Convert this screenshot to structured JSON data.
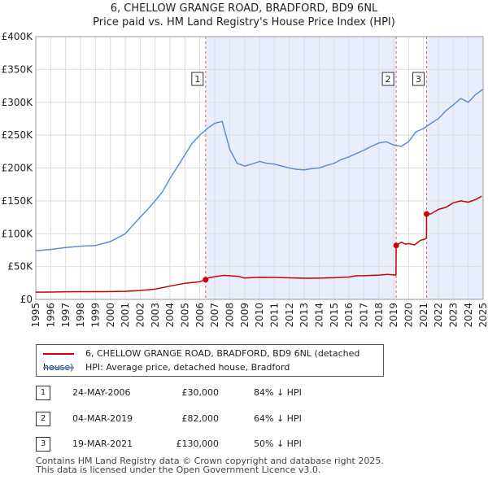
{
  "title_line1": "6, CHELLOW GRANGE ROAD, BRADFORD, BD9 6NL",
  "title_line2": "Price paid vs. HM Land Registry's House Price Index (HPI)",
  "colors": {
    "property": "#cc0000",
    "hpi": "#5b8fd6",
    "shade": "#e8eefb",
    "marker_line": "#e06666",
    "grid": "#dddddd"
  },
  "chart_data": {
    "type": "line",
    "title": "6, CHELLOW GRANGE ROAD, BRADFORD, BD9 6NL — Price paid vs. HM Land Registry's House Price Index (HPI)",
    "xlim": [
      1995,
      2025
    ],
    "ylim": [
      0,
      400000
    ],
    "x_ticks": [
      1995,
      1996,
      1997,
      1998,
      1999,
      2000,
      2001,
      2002,
      2003,
      2004,
      2005,
      2006,
      2007,
      2008,
      2009,
      2010,
      2011,
      2012,
      2013,
      2014,
      2015,
      2016,
      2017,
      2018,
      2019,
      2020,
      2021,
      2022,
      2023,
      2024,
      2025
    ],
    "y_ticks": [
      {
        "value": 0,
        "label": "£0"
      },
      {
        "value": 50000,
        "label": "£50K"
      },
      {
        "value": 100000,
        "label": "£100K"
      },
      {
        "value": 150000,
        "label": "£150K"
      },
      {
        "value": 200000,
        "label": "£200K"
      },
      {
        "value": 250000,
        "label": "£250K"
      },
      {
        "value": 300000,
        "label": "£300K"
      },
      {
        "value": 350000,
        "label": "£350K"
      },
      {
        "value": 400000,
        "label": "£400K"
      }
    ],
    "shaded_periods": [
      [
        2006.39,
        2019.17
      ],
      [
        2021.21,
        2025.0
      ]
    ],
    "series": [
      {
        "name": "6, CHELLOW GRANGE ROAD, BRADFORD, BD9 6NL (detached house)",
        "color": "#cc0000",
        "x": [
          1995.0,
          1996.0,
          1997.0,
          1998.0,
          1999.0,
          2000.0,
          2001.0,
          2002.0,
          2003.0,
          2004.0,
          2005.0,
          2005.5,
          2006.0,
          2006.39,
          2006.6,
          2007.0,
          2007.6,
          2008.0,
          2008.6,
          2009.0,
          2009.5,
          2010.0,
          2011.0,
          2012.0,
          2013.0,
          2014.0,
          2015.0,
          2016.0,
          2016.5,
          2017.0,
          2018.0,
          2018.6,
          2019.16,
          2019.17,
          2019.5,
          2019.8,
          2020.0,
          2020.4,
          2020.8,
          2021.0,
          2021.2,
          2021.21,
          2021.5,
          2022.0,
          2022.5,
          2023.0,
          2023.5,
          2024.0,
          2024.5,
          2024.9
        ],
        "y": [
          11000,
          11200,
          11600,
          11800,
          11800,
          11900,
          12300,
          13500,
          15600,
          20200,
          24500,
          25800,
          27000,
          30000,
          33000,
          34500,
          36500,
          36000,
          35000,
          32500,
          33200,
          33500,
          33400,
          32800,
          32200,
          32300,
          32900,
          34000,
          36000,
          36000,
          37000,
          38000,
          37000,
          82000,
          87000,
          84000,
          85000,
          83000,
          90000,
          91000,
          93000,
          130000,
          130000,
          137000,
          140000,
          147000,
          150000,
          148000,
          152000,
          157000
        ]
      },
      {
        "name": "HPI: Average price, detached house, Bradford",
        "color": "#5b8fd6",
        "x": [
          1995.0,
          1996.0,
          1997.0,
          1998.0,
          1999.0,
          2000.0,
          2001.0,
          2002.0,
          2002.5,
          2003.0,
          2003.5,
          2004.0,
          2004.5,
          2005.0,
          2005.5,
          2006.0,
          2006.5,
          2007.0,
          2007.5,
          2008.0,
          2008.5,
          2009.0,
          2009.5,
          2010.0,
          2010.5,
          2011.0,
          2011.5,
          2012.0,
          2012.5,
          2013.0,
          2013.5,
          2014.0,
          2014.5,
          2015.0,
          2015.5,
          2016.0,
          2016.5,
          2017.0,
          2017.5,
          2018.0,
          2018.5,
          2019.0,
          2019.5,
          2020.0,
          2020.5,
          2021.0,
          2021.5,
          2022.0,
          2022.5,
          2023.0,
          2023.5,
          2024.0,
          2024.5,
          2025.0
        ],
        "y": [
          74000,
          76000,
          79000,
          81000,
          82000,
          88000,
          100000,
          125000,
          137000,
          150000,
          164000,
          184000,
          202000,
          220000,
          238000,
          250000,
          260000,
          268000,
          271000,
          229000,
          207000,
          203000,
          206000,
          210000,
          207000,
          206000,
          203000,
          200000,
          198000,
          197000,
          199000,
          200000,
          204000,
          207000,
          213000,
          217000,
          222000,
          227000,
          233000,
          238000,
          240000,
          235000,
          233000,
          240000,
          255000,
          260000,
          268000,
          275000,
          287000,
          296000,
          306000,
          300000,
          312000,
          320000
        ]
      }
    ],
    "annotations": [
      {
        "label": "1",
        "x": 2006.39,
        "y": 30000
      },
      {
        "label": "2",
        "x": 2019.17,
        "y": 82000
      },
      {
        "label": "3",
        "x": 2021.21,
        "y": 130000
      }
    ]
  },
  "legend": {
    "property_label": "6, CHELLOW GRANGE ROAD, BRADFORD, BD9 6NL (detached house)",
    "hpi_label": "HPI: Average price, detached house, Bradford"
  },
  "sales": [
    {
      "num": "1",
      "date": "24-MAY-2006",
      "price": "£30,000",
      "hpi": "84% ↓ HPI"
    },
    {
      "num": "2",
      "date": "04-MAR-2019",
      "price": "£82,000",
      "hpi": "64% ↓ HPI"
    },
    {
      "num": "3",
      "date": "19-MAR-2021",
      "price": "£130,000",
      "hpi": "50% ↓ HPI"
    }
  ],
  "footer_line1": "Contains HM Land Registry data © Crown copyright and database right 2025.",
  "footer_line2": "This data is licensed under the Open Government Licence v3.0."
}
